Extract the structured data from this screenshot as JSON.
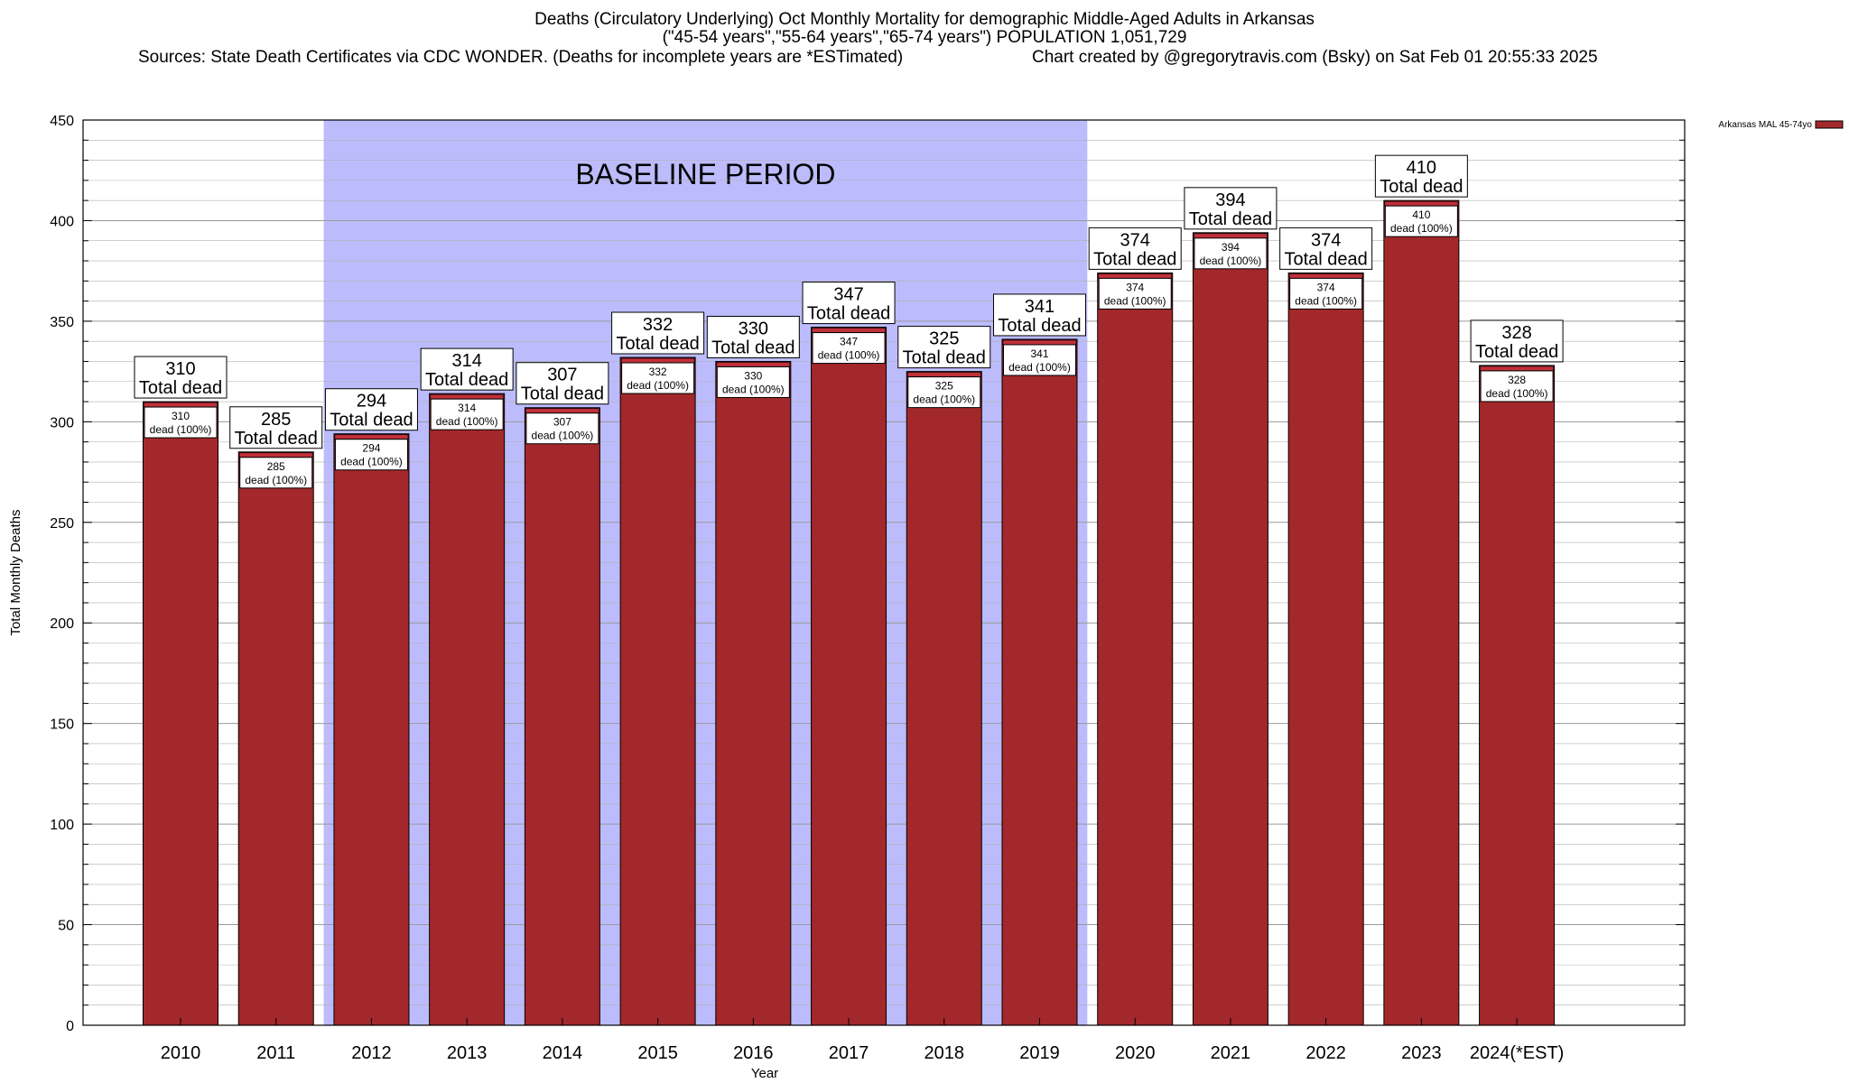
{
  "title": {
    "line1": "Deaths (Circulatory Underlying) Oct Monthly Mortality for demographic Middle-Aged Adults in Arkansas",
    "line2": "(\"45-54 years\",\"55-64 years\",\"65-74 years\") POPULATION 1,051,729",
    "sources": "Sources: State Death Certificates via CDC WONDER. (Deaths for incomplete years are *ESTimated)",
    "credit": "Chart created by @gregorytravis.com (Bsky) on Sat Feb 01 20:55:33 2025"
  },
  "colors": {
    "bar": "#a3282b",
    "bar_cap": "#c0303a",
    "baseline": "#bcbcfd",
    "grid": "#b0b0b0"
  },
  "chart_data": {
    "type": "bar",
    "xlabel": "Year",
    "ylabel": "Total Monthly Deaths",
    "ylim": [
      0,
      450
    ],
    "yticks": [
      0,
      50,
      100,
      150,
      200,
      250,
      300,
      350,
      400,
      450
    ],
    "grid": true,
    "legend": {
      "position": "top-right",
      "entries": [
        "Arkansas MAL 45-74yo"
      ]
    },
    "baseline": {
      "label": "BASELINE PERIOD",
      "from": "2012",
      "to": "2019"
    },
    "categories": [
      "2010",
      "2011",
      "2012",
      "2013",
      "2014",
      "2015",
      "2016",
      "2017",
      "2018",
      "2019",
      "2020",
      "2021",
      "2022",
      "2023",
      "2024(*EST)"
    ],
    "series": [
      {
        "name": "Arkansas MAL 45-74yo",
        "values": [
          310,
          285,
          294,
          314,
          307,
          332,
          330,
          347,
          325,
          341,
          374,
          394,
          374,
          410,
          328
        ]
      }
    ],
    "label_total_suffix": "Total dead",
    "label_inner_suffix": "dead (100%)"
  }
}
